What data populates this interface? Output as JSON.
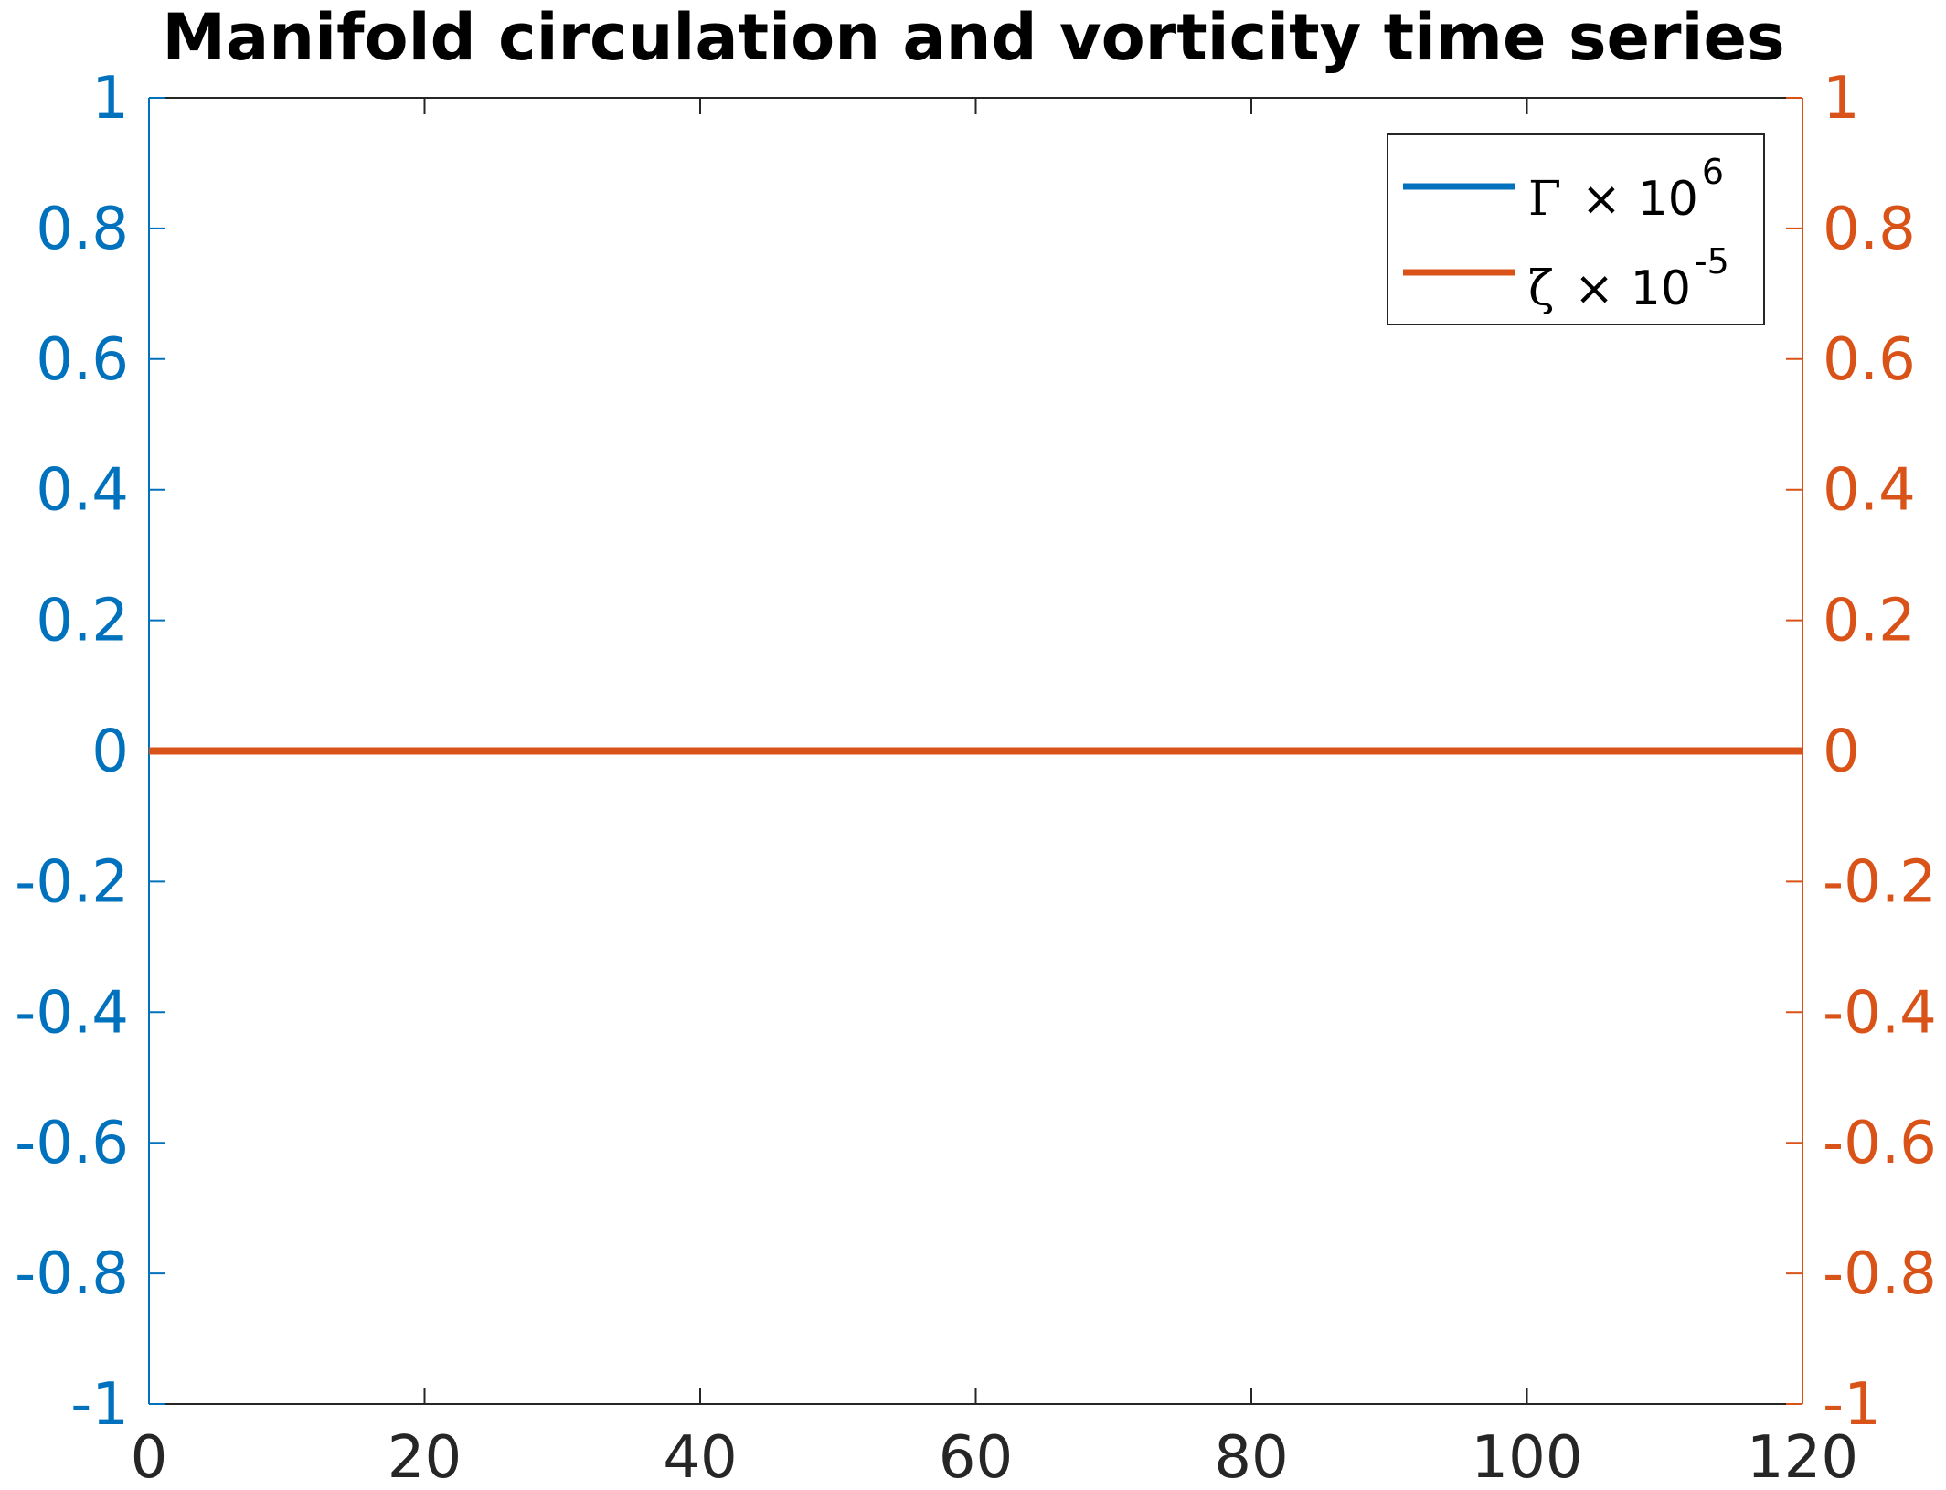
{
  "chart_data": {
    "type": "line",
    "title": "Manifold circulation and vorticity time series",
    "xlabel": "",
    "xlim": [
      0,
      120
    ],
    "x_ticks": [
      0,
      20,
      40,
      60,
      80,
      100,
      120
    ],
    "y_left": {
      "ylim": [
        -1,
        1
      ],
      "ticks": [
        -1,
        -0.8,
        -0.6,
        -0.4,
        -0.2,
        0,
        0.2,
        0.4,
        0.6,
        0.8,
        1
      ],
      "tick_labels": [
        "-1",
        "-0.8",
        "-0.6",
        "-0.4",
        "-0.2",
        "0",
        "0.2",
        "0.4",
        "0.6",
        "0.8",
        "1"
      ],
      "color": "#0072BD"
    },
    "y_right": {
      "ylim": [
        -1,
        1
      ],
      "ticks": [
        -1,
        -0.8,
        -0.6,
        -0.4,
        -0.2,
        0,
        0.2,
        0.4,
        0.6,
        0.8,
        1
      ],
      "tick_labels": [
        "-1",
        "-0.8",
        "-0.6",
        "-0.4",
        "-0.2",
        "0",
        "0.2",
        "0.4",
        "0.6",
        "0.8",
        "1"
      ],
      "color": "#D95319"
    },
    "series": [
      {
        "name": "Γ × 10^6",
        "axis": "left",
        "color": "#0072BD",
        "x": [
          0,
          120
        ],
        "y": [
          0,
          0
        ]
      },
      {
        "name": "ζ × 10^-5",
        "axis": "right",
        "color": "#D95319",
        "x": [
          0,
          120
        ],
        "y": [
          0,
          0
        ]
      }
    ],
    "legend": {
      "position": "top-right",
      "entries": [
        {
          "symbol": "Γ",
          "times": "×",
          "base": "10",
          "exponent": "6"
        },
        {
          "symbol": "ζ",
          "times": "×",
          "base": "10",
          "exponent": "-5"
        }
      ]
    },
    "grid": false,
    "axis_color": "#262626"
  }
}
